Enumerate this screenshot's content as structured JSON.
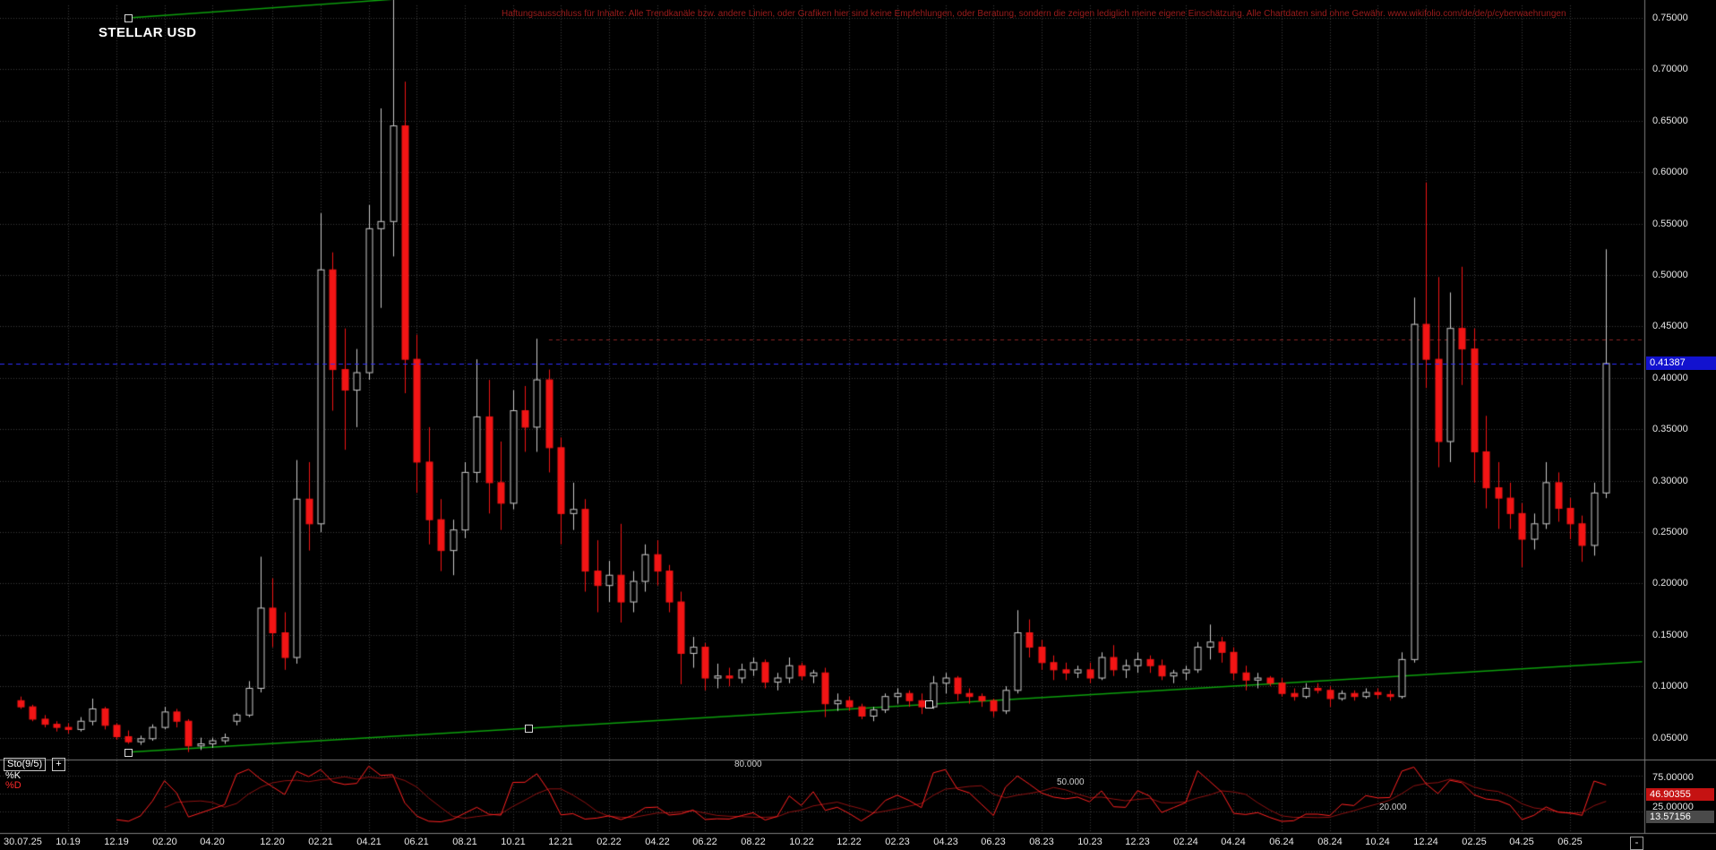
{
  "meta": {
    "title": "STELLAR USD",
    "disclaimer": "Haftungsausschluss für Inhalte: Alle Trendkanäle bzw. andere Linien, oder Grafiken hier sind keine Empfehlungen, oder Beratung, sondern die zeigen lediglich meine eigene Einschätzung. Alle Chartdaten sind ohne Gewähr.  www.wikifolio.com/de/de/p/cyberwaehrungen"
  },
  "colors": {
    "background": "#000000",
    "grid": "#3c3c3c",
    "separator": "#7d7d7d",
    "candle_up": "#c9c9c9",
    "candle_down": "#f21515",
    "trend_green": "#0da00d",
    "price_line": "#2e2eff",
    "badge_blue": "#1212cf",
    "badge_red": "#c51212",
    "badge_gray": "#4a4a4a",
    "level_line": "#8b2424",
    "stoch_k": "#ff2222",
    "stoch_d": "#8f1212",
    "disclaimer_red": "#9b1c1c"
  },
  "controls": {
    "collapse_label": "-"
  },
  "chart_data": {
    "type": "candlestick",
    "title": "STELLAR USD",
    "last_price": 0.41387,
    "last_price_label": "0.41387",
    "y_axis": {
      "ticks": [
        {
          "label": "0.75000",
          "value": 0.75
        },
        {
          "label": "0.70000",
          "value": 0.7
        },
        {
          "label": "0.65000",
          "value": 0.65
        },
        {
          "label": "0.60000",
          "value": 0.6
        },
        {
          "label": "0.55000",
          "value": 0.55
        },
        {
          "label": "0.50000",
          "value": 0.5
        },
        {
          "label": "0.45000",
          "value": 0.45
        },
        {
          "label": "0.40000",
          "value": 0.4
        },
        {
          "label": "0.35000",
          "value": 0.35
        },
        {
          "label": "0.30000",
          "value": 0.3
        },
        {
          "label": "0.25000",
          "value": 0.25
        },
        {
          "label": "0.20000",
          "value": 0.2
        },
        {
          "label": "0.15000",
          "value": 0.15
        },
        {
          "label": "0.10000",
          "value": 0.1
        },
        {
          "label": "0.05000",
          "value": 0.05
        }
      ]
    },
    "x_axis": {
      "labels": [
        {
          "label": "30.07.25",
          "index": 0
        },
        {
          "label": "10.19",
          "index": 4
        },
        {
          "label": "12.19",
          "index": 8
        },
        {
          "label": "02.20",
          "index": 12
        },
        {
          "label": "04.20",
          "index": 16
        },
        {
          "label": "12.20",
          "index": 21
        },
        {
          "label": "02.21",
          "index": 25
        },
        {
          "label": "04.21",
          "index": 29
        },
        {
          "label": "06.21",
          "index": 33
        },
        {
          "label": "08.21",
          "index": 37
        },
        {
          "label": "10.21",
          "index": 41
        },
        {
          "label": "12.21",
          "index": 45
        },
        {
          "label": "02.22",
          "index": 49
        },
        {
          "label": "04.22",
          "index": 53
        },
        {
          "label": "06.22",
          "index": 57
        },
        {
          "label": "08.22",
          "index": 61
        },
        {
          "label": "10.22",
          "index": 65
        },
        {
          "label": "12.22",
          "index": 69
        },
        {
          "label": "02.23",
          "index": 73
        },
        {
          "label": "04.23",
          "index": 77
        },
        {
          "label": "06.23",
          "index": 81
        },
        {
          "label": "08.23",
          "index": 85
        },
        {
          "label": "10.23",
          "index": 89
        },
        {
          "label": "12.23",
          "index": 93
        },
        {
          "label": "02.24",
          "index": 97
        },
        {
          "label": "04.24",
          "index": 101
        },
        {
          "label": "06.24",
          "index": 105
        },
        {
          "label": "08.24",
          "index": 109
        },
        {
          "label": "10.24",
          "index": 113
        },
        {
          "label": "12.24",
          "index": 117
        },
        {
          "label": "02.25",
          "index": 121
        },
        {
          "label": "04.25",
          "index": 125
        },
        {
          "label": "06.25",
          "index": 129
        }
      ]
    },
    "candles": [
      [
        0.086,
        0.09,
        0.078,
        0.08
      ],
      [
        0.08,
        0.082,
        0.066,
        0.068
      ],
      [
        0.068,
        0.072,
        0.06,
        0.063
      ],
      [
        0.063,
        0.066,
        0.056,
        0.06
      ],
      [
        0.06,
        0.064,
        0.054,
        0.058
      ],
      [
        0.058,
        0.07,
        0.056,
        0.066
      ],
      [
        0.066,
        0.088,
        0.062,
        0.078
      ],
      [
        0.078,
        0.08,
        0.058,
        0.062
      ],
      [
        0.062,
        0.064,
        0.048,
        0.051
      ],
      [
        0.051,
        0.057,
        0.044,
        0.046
      ],
      [
        0.046,
        0.052,
        0.043,
        0.049
      ],
      [
        0.049,
        0.063,
        0.047,
        0.06
      ],
      [
        0.06,
        0.08,
        0.058,
        0.075
      ],
      [
        0.075,
        0.078,
        0.06,
        0.066
      ],
      [
        0.066,
        0.068,
        0.036,
        0.042
      ],
      [
        0.042,
        0.05,
        0.038,
        0.044
      ],
      [
        0.044,
        0.05,
        0.04,
        0.047
      ],
      [
        0.047,
        0.054,
        0.044,
        0.05
      ],
      [
        0.066,
        0.074,
        0.062,
        0.072
      ],
      [
        0.072,
        0.105,
        0.07,
        0.098
      ],
      [
        0.098,
        0.226,
        0.094,
        0.176
      ],
      [
        0.176,
        0.205,
        0.138,
        0.152
      ],
      [
        0.152,
        0.172,
        0.116,
        0.128
      ],
      [
        0.128,
        0.32,
        0.122,
        0.282
      ],
      [
        0.282,
        0.318,
        0.232,
        0.258
      ],
      [
        0.258,
        0.56,
        0.25,
        0.505
      ],
      [
        0.505,
        0.522,
        0.368,
        0.408
      ],
      [
        0.408,
        0.448,
        0.33,
        0.388
      ],
      [
        0.388,
        0.428,
        0.352,
        0.405
      ],
      [
        0.405,
        0.568,
        0.398,
        0.545
      ],
      [
        0.545,
        0.662,
        0.468,
        0.552
      ],
      [
        0.552,
        0.768,
        0.518,
        0.645
      ],
      [
        0.645,
        0.688,
        0.385,
        0.418
      ],
      [
        0.418,
        0.442,
        0.288,
        0.318
      ],
      [
        0.318,
        0.352,
        0.238,
        0.262
      ],
      [
        0.262,
        0.282,
        0.212,
        0.232
      ],
      [
        0.232,
        0.262,
        0.208,
        0.252
      ],
      [
        0.252,
        0.318,
        0.244,
        0.308
      ],
      [
        0.308,
        0.418,
        0.298,
        0.362
      ],
      [
        0.362,
        0.398,
        0.268,
        0.298
      ],
      [
        0.298,
        0.338,
        0.252,
        0.278
      ],
      [
        0.278,
        0.388,
        0.272,
        0.368
      ],
      [
        0.368,
        0.392,
        0.328,
        0.352
      ],
      [
        0.352,
        0.438,
        0.328,
        0.398
      ],
      [
        0.398,
        0.408,
        0.308,
        0.332
      ],
      [
        0.332,
        0.342,
        0.238,
        0.268
      ],
      [
        0.268,
        0.298,
        0.252,
        0.272
      ],
      [
        0.272,
        0.282,
        0.192,
        0.212
      ],
      [
        0.212,
        0.242,
        0.172,
        0.198
      ],
      [
        0.198,
        0.222,
        0.182,
        0.208
      ],
      [
        0.208,
        0.258,
        0.162,
        0.182
      ],
      [
        0.182,
        0.212,
        0.172,
        0.202
      ],
      [
        0.202,
        0.238,
        0.192,
        0.228
      ],
      [
        0.228,
        0.242,
        0.198,
        0.212
      ],
      [
        0.212,
        0.218,
        0.172,
        0.182
      ],
      [
        0.182,
        0.192,
        0.102,
        0.132
      ],
      [
        0.132,
        0.148,
        0.118,
        0.138
      ],
      [
        0.138,
        0.142,
        0.096,
        0.108
      ],
      [
        0.108,
        0.122,
        0.098,
        0.11
      ],
      [
        0.11,
        0.118,
        0.1,
        0.108
      ],
      [
        0.108,
        0.122,
        0.103,
        0.116
      ],
      [
        0.116,
        0.128,
        0.11,
        0.123
      ],
      [
        0.123,
        0.126,
        0.098,
        0.104
      ],
      [
        0.104,
        0.113,
        0.096,
        0.108
      ],
      [
        0.108,
        0.128,
        0.103,
        0.12
      ],
      [
        0.12,
        0.123,
        0.106,
        0.11
      ],
      [
        0.11,
        0.116,
        0.103,
        0.113
      ],
      [
        0.113,
        0.118,
        0.07,
        0.083
      ],
      [
        0.083,
        0.093,
        0.076,
        0.086
      ],
      [
        0.086,
        0.09,
        0.076,
        0.08
      ],
      [
        0.08,
        0.083,
        0.068,
        0.071
      ],
      [
        0.071,
        0.08,
        0.066,
        0.077
      ],
      [
        0.077,
        0.093,
        0.074,
        0.09
      ],
      [
        0.09,
        0.098,
        0.083,
        0.093
      ],
      [
        0.093,
        0.096,
        0.08,
        0.086
      ],
      [
        0.086,
        0.093,
        0.073,
        0.08
      ],
      [
        0.08,
        0.11,
        0.078,
        0.103
      ],
      [
        0.103,
        0.113,
        0.093,
        0.108
      ],
      [
        0.108,
        0.11,
        0.086,
        0.093
      ],
      [
        0.093,
        0.098,
        0.083,
        0.09
      ],
      [
        0.09,
        0.093,
        0.08,
        0.086
      ],
      [
        0.086,
        0.088,
        0.07,
        0.076
      ],
      [
        0.076,
        0.1,
        0.073,
        0.096
      ],
      [
        0.096,
        0.174,
        0.093,
        0.152
      ],
      [
        0.152,
        0.165,
        0.128,
        0.138
      ],
      [
        0.138,
        0.145,
        0.116,
        0.123
      ],
      [
        0.123,
        0.13,
        0.106,
        0.116
      ],
      [
        0.116,
        0.123,
        0.106,
        0.113
      ],
      [
        0.113,
        0.12,
        0.108,
        0.116
      ],
      [
        0.116,
        0.123,
        0.103,
        0.108
      ],
      [
        0.108,
        0.133,
        0.106,
        0.128
      ],
      [
        0.128,
        0.14,
        0.11,
        0.116
      ],
      [
        0.116,
        0.126,
        0.108,
        0.12
      ],
      [
        0.12,
        0.133,
        0.113,
        0.126
      ],
      [
        0.126,
        0.13,
        0.113,
        0.12
      ],
      [
        0.12,
        0.126,
        0.106,
        0.11
      ],
      [
        0.11,
        0.116,
        0.103,
        0.113
      ],
      [
        0.113,
        0.12,
        0.106,
        0.116
      ],
      [
        0.116,
        0.143,
        0.113,
        0.138
      ],
      [
        0.138,
        0.16,
        0.126,
        0.143
      ],
      [
        0.143,
        0.148,
        0.123,
        0.133
      ],
      [
        0.133,
        0.138,
        0.106,
        0.113
      ],
      [
        0.113,
        0.12,
        0.096,
        0.106
      ],
      [
        0.106,
        0.113,
        0.098,
        0.108
      ],
      [
        0.108,
        0.11,
        0.1,
        0.103
      ],
      [
        0.103,
        0.108,
        0.09,
        0.093
      ],
      [
        0.093,
        0.098,
        0.086,
        0.09
      ],
      [
        0.09,
        0.103,
        0.088,
        0.098
      ],
      [
        0.098,
        0.103,
        0.093,
        0.096
      ],
      [
        0.096,
        0.1,
        0.08,
        0.088
      ],
      [
        0.088,
        0.096,
        0.086,
        0.093
      ],
      [
        0.093,
        0.096,
        0.086,
        0.09
      ],
      [
        0.09,
        0.098,
        0.088,
        0.094
      ],
      [
        0.094,
        0.098,
        0.088,
        0.092
      ],
      [
        0.092,
        0.096,
        0.086,
        0.09
      ],
      [
        0.09,
        0.133,
        0.088,
        0.126
      ],
      [
        0.126,
        0.478,
        0.123,
        0.452
      ],
      [
        0.452,
        0.59,
        0.39,
        0.418
      ],
      [
        0.418,
        0.498,
        0.313,
        0.338
      ],
      [
        0.338,
        0.483,
        0.318,
        0.448
      ],
      [
        0.448,
        0.508,
        0.393,
        0.428
      ],
      [
        0.428,
        0.448,
        0.298,
        0.328
      ],
      [
        0.328,
        0.363,
        0.273,
        0.293
      ],
      [
        0.293,
        0.318,
        0.253,
        0.283
      ],
      [
        0.283,
        0.298,
        0.253,
        0.268
      ],
      [
        0.268,
        0.278,
        0.216,
        0.243
      ],
      [
        0.243,
        0.268,
        0.233,
        0.258
      ],
      [
        0.258,
        0.318,
        0.253,
        0.298
      ],
      [
        0.298,
        0.308,
        0.26,
        0.273
      ],
      [
        0.273,
        0.283,
        0.243,
        0.258
      ],
      [
        0.258,
        0.266,
        0.221,
        0.237
      ],
      [
        0.237,
        0.298,
        0.227,
        0.288
      ],
      [
        0.288,
        0.525,
        0.283,
        0.41387
      ]
    ],
    "overlays": {
      "trendlines": [
        {
          "name": "support",
          "from": {
            "index": 9,
            "price": 0.036
          },
          "to": {
            "index": 135,
            "price": 0.124
          },
          "handles": [
            0.0,
            0.264,
            0.529
          ]
        },
        {
          "name": "resistance",
          "from": {
            "index": 9,
            "price": 0.75
          },
          "to": {
            "index": 31,
            "price": 0.768
          },
          "handles": [
            0.0
          ]
        }
      ],
      "level_line": {
        "price": 0.437,
        "from_index": 44,
        "style": "dashed"
      },
      "last_price_line": {
        "price": 0.41387,
        "style": "dashed"
      }
    },
    "indicator": {
      "name": "Sto(9/5)",
      "expand_label": "+",
      "k_label": "%K",
      "d_label": "%D",
      "k_period": 9,
      "d_smoothing": 5,
      "k_value_label": "46.90355",
      "d_value_label": "13.57156",
      "axis_labels": [
        "75.00000",
        "25.00000"
      ],
      "level_labels": [
        {
          "label": "80.000",
          "value": 80
        },
        {
          "label": "50.000",
          "value": 50
        },
        {
          "label": "20.000",
          "value": 20
        }
      ],
      "range": [
        0,
        100
      ]
    }
  }
}
